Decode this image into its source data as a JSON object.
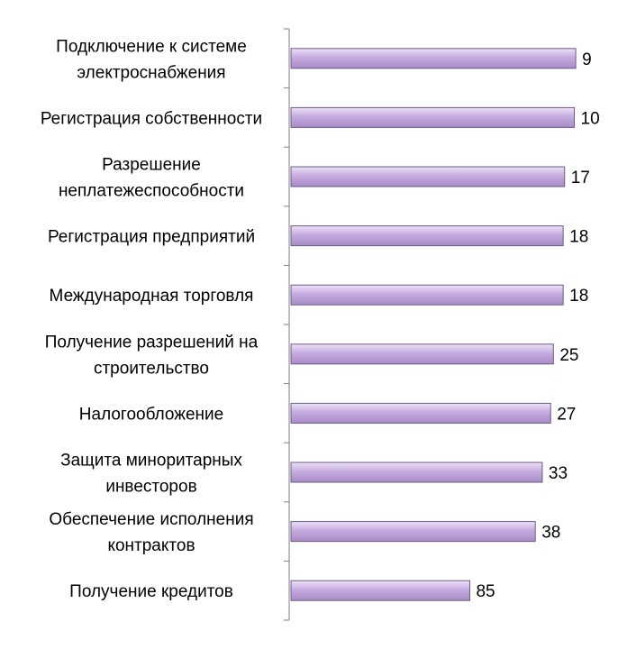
{
  "chart_data": {
    "type": "bar",
    "orientation": "horizontal",
    "categories": [
      [
        "Подключение к системе",
        "электроснабжения"
      ],
      [
        "Регистрация собственности"
      ],
      [
        "Разрешение",
        "неплатежеспособности"
      ],
      [
        "Регистрация предприятий"
      ],
      [
        "Международная торговля"
      ],
      [
        "Получение разрешений на",
        "строительство"
      ],
      [
        "Налогообложение"
      ],
      [
        "Защита миноритарных",
        "инвесторов"
      ],
      [
        "Обеспечение исполнения",
        "контрактов"
      ],
      [
        "Получение кредитов"
      ]
    ],
    "values": [
      9,
      10,
      17,
      18,
      18,
      25,
      27,
      33,
      38,
      85
    ],
    "value_labels": [
      "9",
      "10",
      "17",
      "18",
      "18",
      "25",
      "27",
      "33",
      "38",
      "85"
    ],
    "reversed_scale": true,
    "xlim": [
      0,
      100
    ],
    "grid": false,
    "legend": "none",
    "bar_color": "#c3a9dc",
    "bar_edge_color": "#6d5a86",
    "axis_color": "#7f7f7f",
    "title": "",
    "xlabel": "",
    "ylabel": ""
  }
}
